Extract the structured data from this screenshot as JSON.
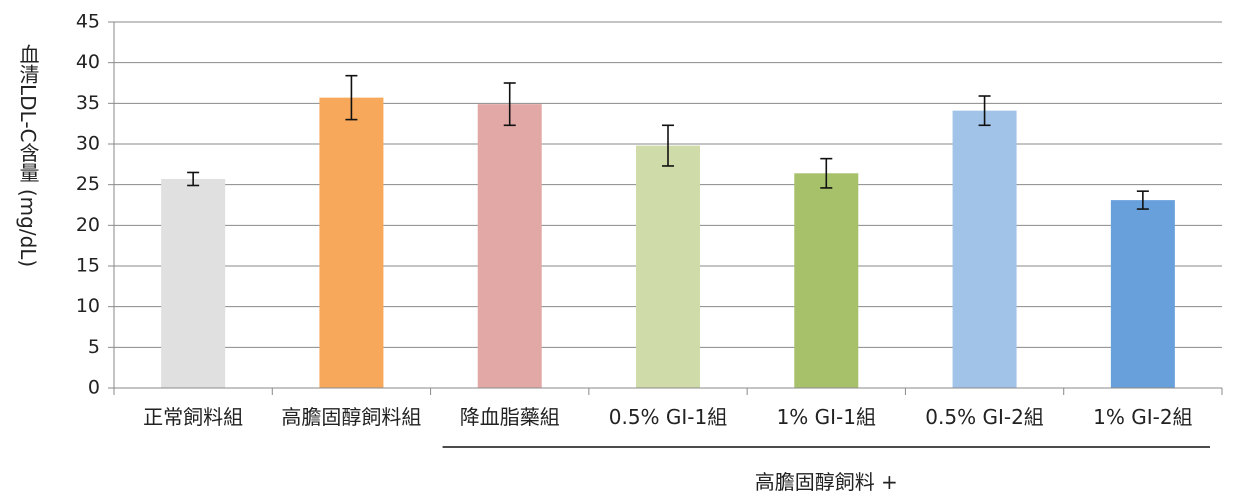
{
  "chart_data": {
    "type": "bar",
    "y_label": "血清LDL-C含量 (mg/dL)",
    "categories": [
      "正常飼料組",
      "高膽固醇飼料組",
      "降血脂藥組",
      "0.5% GI-1組",
      "1% GI-1組",
      "0.5% GI-2組",
      "1% GI-2組"
    ],
    "values": [
      25.7,
      35.7,
      34.9,
      29.8,
      26.4,
      34.1,
      23.1
    ],
    "errors": [
      0.8,
      2.7,
      2.6,
      2.5,
      1.8,
      1.8,
      1.1
    ],
    "colors": [
      "#e0e0e0",
      "#f8a85a",
      "#e2a8a6",
      "#cfdca9",
      "#a7c16a",
      "#a2c3e8",
      "#68a0dc"
    ],
    "group_label": "高膽固醇飼料 +",
    "ylim": [
      0,
      45
    ],
    "yticks": [
      0,
      5,
      10,
      15,
      20,
      25,
      30,
      35,
      40,
      45
    ],
    "grid": true
  }
}
